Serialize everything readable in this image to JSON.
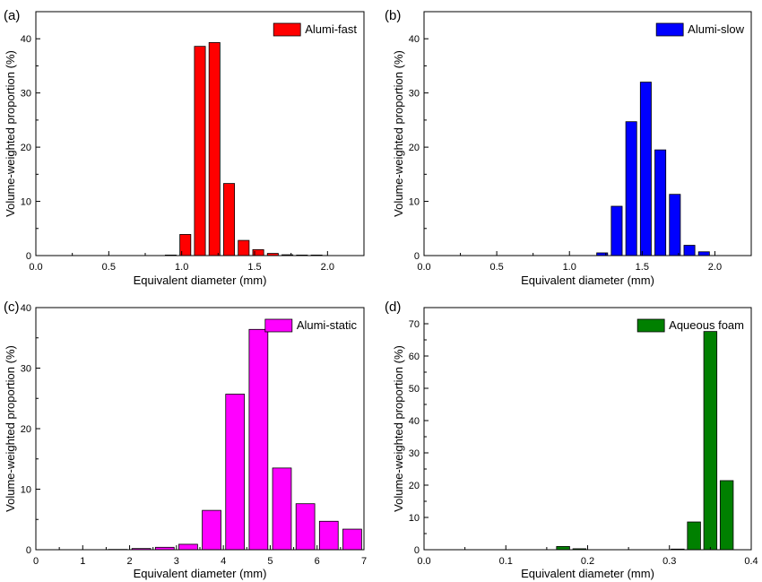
{
  "chart_data": [
    {
      "type": "bar",
      "panel_label": "(a)",
      "xlabel": "Equivalent diameter (mm)",
      "ylabel": "Volume-weighted proportion (%)",
      "xlim": [
        0.0,
        2.25
      ],
      "ylim": [
        0,
        45
      ],
      "xticks": [
        0.0,
        0.5,
        1.0,
        1.5,
        2.0
      ],
      "xtick_labels": [
        "0.0",
        "0.5",
        "1.0",
        "1.5",
        "2.0"
      ],
      "yticks": [
        0,
        10,
        20,
        30,
        40
      ],
      "ytick_labels": [
        "0",
        "10",
        "20",
        "30",
        "40"
      ],
      "bar_width": 0.075,
      "legend_position": "top-right",
      "series": [
        {
          "name": "Alumi-fast",
          "color": "#ff0000",
          "x": [
            0.925,
            1.025,
            1.125,
            1.225,
            1.325,
            1.425,
            1.525,
            1.625,
            1.725,
            1.825,
            1.925
          ],
          "values": [
            0.1,
            3.9,
            38.6,
            39.3,
            13.3,
            2.8,
            1.1,
            0.4,
            0.15,
            0.1,
            0.1
          ]
        }
      ]
    },
    {
      "type": "bar",
      "panel_label": "(b)",
      "xlabel": "Equivalent diameter (mm)",
      "ylabel": "Volume-weighted proportion (%)",
      "xlim": [
        0.0,
        2.25
      ],
      "ylim": [
        0,
        45
      ],
      "xticks": [
        0.0,
        0.5,
        1.0,
        1.5,
        2.0
      ],
      "xtick_labels": [
        "0.0",
        "0.5",
        "1.0",
        "1.5",
        "2.0"
      ],
      "yticks": [
        0,
        10,
        20,
        30,
        40
      ],
      "ytick_labels": [
        "0",
        "10",
        "20",
        "30",
        "40"
      ],
      "bar_width": 0.075,
      "legend_position": "top-right",
      "series": [
        {
          "name": "Alumi-slow",
          "color": "#0000ff",
          "x": [
            1.225,
            1.325,
            1.425,
            1.525,
            1.625,
            1.725,
            1.825,
            1.925
          ],
          "values": [
            0.5,
            9.1,
            24.7,
            32.0,
            19.5,
            11.3,
            1.9,
            0.7
          ]
        }
      ]
    },
    {
      "type": "bar",
      "panel_label": "(c)",
      "xlabel": "Equivalent diameter (mm)",
      "ylabel": "Volume-weighted proportion (%)",
      "xlim": [
        0,
        7
      ],
      "ylim": [
        0,
        40
      ],
      "xticks": [
        0,
        1,
        2,
        3,
        4,
        5,
        6,
        7
      ],
      "xtick_labels": [
        "0",
        "1",
        "2",
        "3",
        "4",
        "5",
        "6",
        "7"
      ],
      "yticks": [
        0,
        10,
        20,
        30,
        40
      ],
      "ytick_labels": [
        "0",
        "10",
        "20",
        "30",
        "40"
      ],
      "bar_width": 0.4,
      "legend_position": "top-right",
      "series": [
        {
          "name": "Alumi-static",
          "color": "#ff00ff",
          "x": [
            1.75,
            2.25,
            2.75,
            3.25,
            3.75,
            4.25,
            4.75,
            5.25,
            5.75,
            6.25,
            6.75
          ],
          "values": [
            0.05,
            0.2,
            0.4,
            0.9,
            6.5,
            25.7,
            36.4,
            13.5,
            7.6,
            4.7,
            3.4
          ]
        }
      ]
    },
    {
      "type": "bar",
      "panel_label": "(d)",
      "xlabel": "Equivalent diameter (mm)",
      "ylabel": "Volume-weighted proportion (%)",
      "xlim": [
        0.0,
        0.4
      ],
      "ylim": [
        0,
        75
      ],
      "xticks": [
        0.0,
        0.1,
        0.2,
        0.3,
        0.4
      ],
      "xtick_labels": [
        "0.0",
        "0.1",
        "0.2",
        "0.3",
        "0.4"
      ],
      "yticks": [
        0,
        10,
        20,
        30,
        40,
        50,
        60,
        70
      ],
      "ytick_labels": [
        "0",
        "10",
        "20",
        "30",
        "40",
        "50",
        "60",
        "70"
      ],
      "bar_width": 0.016,
      "legend_position": "top-right",
      "series": [
        {
          "name": "Aqueous foam",
          "color": "#008000",
          "x": [
            0.17,
            0.19,
            0.31,
            0.33,
            0.35,
            0.37
          ],
          "values": [
            1.0,
            0.3,
            0.2,
            8.6,
            67.6,
            21.4
          ]
        }
      ]
    }
  ]
}
